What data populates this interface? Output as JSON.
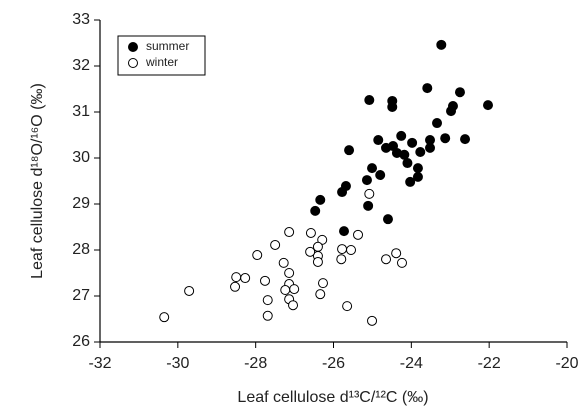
{
  "chart_data": {
    "type": "scatter",
    "x_label": "Leaf cellulose d¹³C/¹²C (‰)",
    "y_label": "Leaf cellulose d¹⁸O/¹⁶O (‰)",
    "xlim": [
      -32,
      -20
    ],
    "xticks": [
      -32,
      -30,
      -28,
      -26,
      -24,
      -22,
      -20
    ],
    "ylim": [
      26,
      33
    ],
    "yticks": [
      26,
      27,
      28,
      29,
      30,
      31,
      32,
      33
    ],
    "legend": "upper left",
    "series": [
      {
        "name": "summer",
        "color": "#000000",
        "filled": true,
        "x": [
          -23.23,
          -23.59,
          -22.75,
          -22.03,
          -25.08,
          -24.49,
          -24.49,
          -22.93,
          -22.98,
          -23.34,
          -23.13,
          -22.62,
          -24.85,
          -24.26,
          -23.52,
          -24.65,
          -24.47,
          -24.37,
          -24.18,
          -23.98,
          -23.77,
          -23.52,
          -25.6,
          -24.1,
          -23.83,
          -24.03,
          -23.83,
          -24.8,
          -25.01,
          -25.14,
          -25.68,
          -25.78,
          -26.34,
          -26.47,
          -25.11,
          -24.6,
          -25.73
        ],
        "values": [
          32.46,
          31.52,
          31.43,
          31.15,
          31.26,
          31.24,
          31.11,
          31.13,
          31.02,
          30.76,
          30.43,
          30.41,
          30.39,
          30.48,
          30.39,
          30.22,
          30.26,
          30.11,
          30.07,
          30.33,
          30.13,
          30.22,
          30.17,
          29.89,
          29.78,
          29.48,
          29.59,
          29.63,
          29.78,
          29.52,
          29.39,
          29.26,
          29.09,
          28.85,
          28.96,
          28.67,
          28.41
        ]
      },
      {
        "name": "winter",
        "color": "#000000",
        "filled": false,
        "x": [
          -30.35,
          -29.71,
          -28.5,
          -28.27,
          -28.53,
          -27.96,
          -27.5,
          -27.14,
          -27.76,
          -27.69,
          -27.69,
          -27.28,
          -27.14,
          -27.14,
          -27.24,
          -27.01,
          -27.14,
          -27.04,
          -26.58,
          -26.29,
          -26.4,
          -26.4,
          -26.4,
          -26.6,
          -26.27,
          -26.34,
          -25.78,
          -25.55,
          -25.8,
          -25.37,
          -25.65,
          -25.08,
          -25.01,
          -24.65,
          -24.39,
          -24.24
        ],
        "values": [
          26.54,
          27.11,
          27.41,
          27.39,
          27.2,
          27.89,
          28.11,
          28.39,
          27.33,
          26.91,
          26.57,
          27.72,
          27.5,
          27.26,
          27.13,
          27.15,
          26.93,
          26.8,
          28.37,
          28.22,
          28.07,
          27.87,
          27.74,
          27.96,
          27.28,
          27.04,
          28.02,
          28.0,
          27.8,
          28.33,
          26.78,
          29.22,
          26.46,
          27.8,
          27.93,
          27.72
        ]
      }
    ]
  }
}
